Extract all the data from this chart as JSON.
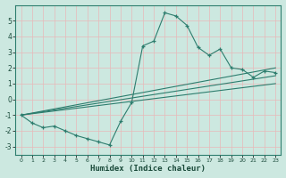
{
  "title": "",
  "xlabel": "Humidex (Indice chaleur)",
  "ylabel": "",
  "bg_color": "#cce8e0",
  "grid_color": "#b0d8d0",
  "line_color": "#2d7d6e",
  "xlim": [
    -0.5,
    23.5
  ],
  "ylim": [
    -3.5,
    6.0
  ],
  "xticks": [
    0,
    1,
    2,
    3,
    4,
    5,
    6,
    7,
    8,
    9,
    10,
    11,
    12,
    13,
    14,
    15,
    16,
    17,
    18,
    19,
    20,
    21,
    22,
    23
  ],
  "yticks": [
    -3,
    -2,
    -1,
    0,
    1,
    2,
    3,
    4,
    5
  ],
  "series1_x": [
    0,
    1,
    2,
    3,
    4,
    5,
    6,
    7,
    8,
    9,
    10,
    11,
    12,
    13,
    14,
    15,
    16,
    17,
    18,
    19,
    20,
    21,
    22,
    23
  ],
  "series1_y": [
    -1.0,
    -1.5,
    -1.8,
    -1.7,
    -2.0,
    -2.3,
    -2.5,
    -2.7,
    -2.9,
    -1.4,
    -0.2,
    3.4,
    3.7,
    5.5,
    5.3,
    4.7,
    3.3,
    2.8,
    3.2,
    2.0,
    1.9,
    1.4,
    1.8,
    1.7
  ],
  "series2_x": [
    0,
    23
  ],
  "series2_y": [
    -1.0,
    2.0
  ],
  "series3_x": [
    0,
    23
  ],
  "series3_y": [
    -1.0,
    1.5
  ],
  "series4_x": [
    0,
    23
  ],
  "series4_y": [
    -1.0,
    1.0
  ]
}
